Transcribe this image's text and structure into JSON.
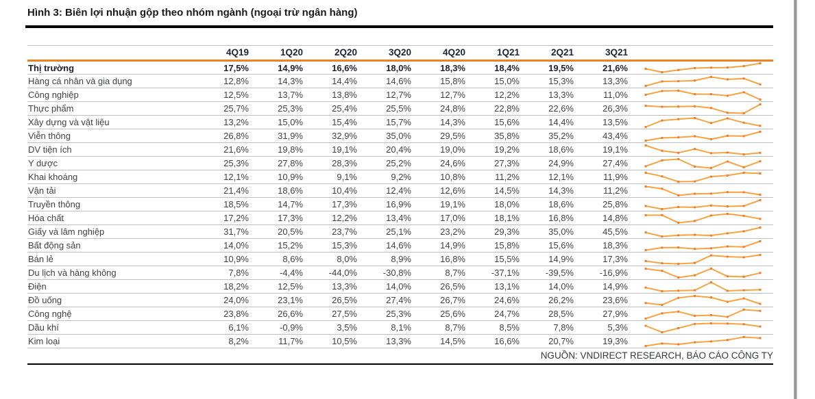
{
  "title": "Hình 3: Biên lợi nhuận gộp theo nhóm ngành (ngoại trừ ngân hàng)",
  "source": "NGUỒN: VNDIRECT RESEARCH, BÁO CÁO CÔNG TY",
  "colors": {
    "accent_orange": "#EF8122",
    "sparkline_line": "#F7A341",
    "sparkline_marker": "#ED7D31",
    "divider_grey": "#BFBFBF"
  },
  "chart_data": {
    "type": "table",
    "title": "Hình 3: Biên lợi nhuận gộp theo nhóm ngành (ngoại trừ ngân hàng)",
    "value_format": "percent, comma decimal separator",
    "sparkline": "per-row orange line chart with point markers over the 8 quarterly values",
    "columns": [
      "4Q19",
      "1Q20",
      "2Q20",
      "3Q20",
      "4Q20",
      "1Q21",
      "2Q21",
      "3Q21"
    ],
    "rows": [
      {
        "label": "Thị trường",
        "bold": true,
        "values": [
          17.5,
          14.9,
          16.6,
          18.0,
          18.3,
          18.4,
          19.5,
          21.6
        ]
      },
      {
        "label": "Hàng cá nhân và gia dụng",
        "values": [
          12.8,
          14.3,
          14.4,
          14.6,
          15.8,
          15.0,
          15.3,
          13.3
        ]
      },
      {
        "label": "Công nghiệp",
        "values": [
          12.5,
          13.7,
          13.8,
          12.7,
          12.7,
          12.2,
          13.3,
          11.0
        ]
      },
      {
        "label": "Thực phẩm",
        "values": [
          25.7,
          25.3,
          25.4,
          25.5,
          24.8,
          22.8,
          22.6,
          26.3
        ]
      },
      {
        "label": "Xây dựng và vật liệu",
        "values": [
          13.2,
          15.0,
          15.4,
          15.7,
          14.3,
          15.6,
          14.4,
          13.5
        ]
      },
      {
        "label": "Viễn thông",
        "values": [
          26.8,
          31.9,
          32.9,
          35.0,
          29.5,
          35.8,
          35.2,
          43.4
        ]
      },
      {
        "label": "DV tiện ích",
        "values": [
          21.6,
          19.8,
          19.1,
          20.4,
          19.0,
          19.2,
          18.6,
          19.1
        ]
      },
      {
        "label": "Y dược",
        "values": [
          25.3,
          27.8,
          28.3,
          25.2,
          24.6,
          27.3,
          24.9,
          27.4
        ]
      },
      {
        "label": "Khai khoáng",
        "values": [
          12.1,
          10.9,
          9.1,
          9.2,
          10.8,
          11.2,
          12.1,
          11.9
        ]
      },
      {
        "label": "Vận tải",
        "values": [
          21.4,
          18.6,
          10.4,
          12.4,
          12.6,
          14.5,
          14.3,
          11.2
        ]
      },
      {
        "label": "Truyền thông",
        "values": [
          18.5,
          14.7,
          17.3,
          16.9,
          19.1,
          18.0,
          18.6,
          25.8
        ]
      },
      {
        "label": "Hóa chất",
        "values": [
          17.2,
          17.3,
          12.2,
          13.4,
          17.0,
          18.1,
          16.8,
          14.8
        ]
      },
      {
        "label": "Giấy và lâm nghiệp",
        "values": [
          31.7,
          20.5,
          23.7,
          25.1,
          23.2,
          29.3,
          35.0,
          45.5
        ]
      },
      {
        "label": "Bất động sản",
        "values": [
          14.0,
          15.2,
          15.3,
          14.6,
          14.9,
          15.8,
          15.6,
          18.3
        ]
      },
      {
        "label": "Bán lẻ",
        "values": [
          10.9,
          8.6,
          8.0,
          8.9,
          16.8,
          15.5,
          14.9,
          17.3
        ]
      },
      {
        "label": "Du lịch và hàng không",
        "values": [
          7.8,
          -4.4,
          -44.0,
          -30.8,
          8.7,
          -37.1,
          -39.5,
          -16.9
        ]
      },
      {
        "label": "Điện",
        "values": [
          18.2,
          12.5,
          13.3,
          14.0,
          26.5,
          13.1,
          14.0,
          14.9
        ]
      },
      {
        "label": "Đồ uống",
        "values": [
          24.0,
          23.1,
          26.5,
          27.4,
          26.7,
          24.6,
          26.2,
          23.6
        ]
      },
      {
        "label": "Công nghệ",
        "values": [
          23.8,
          26.6,
          27.5,
          25.3,
          25.6,
          24.7,
          28.5,
          27.9
        ]
      },
      {
        "label": "Dầu khí",
        "values": [
          6.1,
          -0.9,
          3.5,
          8.1,
          8.7,
          8.5,
          7.8,
          5.3
        ]
      },
      {
        "label": "Kim loại",
        "values": [
          8.2,
          11.7,
          10.5,
          13.3,
          14.5,
          16.6,
          20.7,
          19.3
        ]
      }
    ]
  }
}
